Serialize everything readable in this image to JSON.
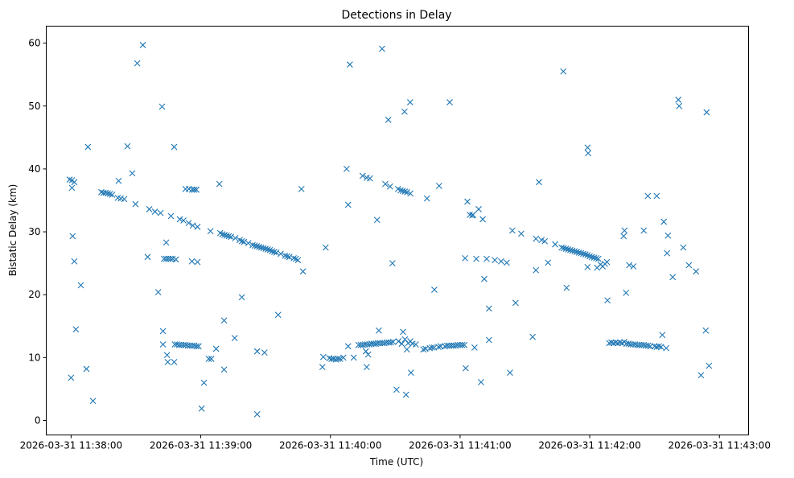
{
  "chart_data": {
    "type": "scatter",
    "title": "Detections in Delay",
    "xlabel": "Time (UTC)",
    "ylabel": "Bistatic Delay (km)",
    "x_units": "seconds after 2026-03-31 11:38:00 UTC",
    "xlim": [
      -11.5,
      313.5
    ],
    "ylim": [
      -2.3,
      62.7
    ],
    "grid": false,
    "marker": "x",
    "color": "#1f77b4",
    "x_ticks": [
      {
        "value": 0,
        "label": "2026-03-31 11:38:00"
      },
      {
        "value": 60,
        "label": "2026-03-31 11:39:00"
      },
      {
        "value": 120,
        "label": "2026-03-31 11:40:00"
      },
      {
        "value": 180,
        "label": "2026-03-31 11:41:00"
      },
      {
        "value": 240,
        "label": "2026-03-31 11:42:00"
      },
      {
        "value": 300,
        "label": "2026-03-31 11:43:00"
      }
    ],
    "y_ticks": [
      {
        "value": 0,
        "label": "0"
      },
      {
        "value": 10,
        "label": "10"
      },
      {
        "value": 20,
        "label": "20"
      },
      {
        "value": 30,
        "label": "30"
      },
      {
        "value": 40,
        "label": "40"
      },
      {
        "value": 50,
        "label": "50"
      },
      {
        "value": 60,
        "label": "60"
      }
    ],
    "points": [
      [
        -0.7,
        38.3
      ],
      [
        0.4,
        38.2
      ],
      [
        1.5,
        37.9
      ],
      [
        0.4,
        37.0
      ],
      [
        0.7,
        29.3
      ],
      [
        1.5,
        25.3
      ],
      [
        2.2,
        14.5
      ],
      [
        4.5,
        21.5
      ],
      [
        0,
        6.8
      ],
      [
        7.1,
        8.2
      ],
      [
        7.8,
        43.5
      ],
      [
        10.1,
        3.1
      ],
      [
        14,
        36.3
      ],
      [
        15,
        36.2
      ],
      [
        16,
        36.2
      ],
      [
        17,
        36.1
      ],
      [
        18,
        36.0
      ],
      [
        19,
        35.9
      ],
      [
        22.0,
        38.1
      ],
      [
        21.6,
        35.4
      ],
      [
        23,
        35.3
      ],
      [
        24.6,
        35.2
      ],
      [
        26.1,
        43.6
      ],
      [
        28.3,
        39.3
      ],
      [
        29.8,
        34.4
      ],
      [
        30.6,
        56.8
      ],
      [
        33.2,
        59.7
      ],
      [
        35.4,
        26.0
      ],
      [
        36.2,
        33.6
      ],
      [
        38.8,
        33.2
      ],
      [
        41.4,
        33.0
      ],
      [
        40.3,
        20.4
      ],
      [
        42.5,
        14.2
      ],
      [
        42.1,
        49.9
      ],
      [
        44.0,
        28.3
      ],
      [
        42.5,
        12.1
      ],
      [
        44.4,
        10.4
      ],
      [
        44.7,
        9.3
      ],
      [
        47.7,
        9.3
      ],
      [
        43,
        25.7
      ],
      [
        44,
        25.7
      ],
      [
        45,
        25.7
      ],
      [
        46,
        25.7
      ],
      [
        47,
        25.7
      ],
      [
        48.5,
        25.6
      ],
      [
        47.7,
        43.5
      ],
      [
        46.2,
        32.5
      ],
      [
        50.3,
        32.0
      ],
      [
        52,
        31.8
      ],
      [
        54.4,
        31.4
      ],
      [
        56.3,
        31.0
      ],
      [
        58.5,
        30.8
      ],
      [
        52.9,
        36.8
      ],
      [
        54.5,
        36.8
      ],
      [
        56,
        36.7
      ],
      [
        57,
        36.7
      ],
      [
        58,
        36.7
      ],
      [
        55.9,
        25.3
      ],
      [
        58.5,
        25.2
      ],
      [
        48,
        12.1
      ],
      [
        49,
        12.1
      ],
      [
        50,
        12.0
      ],
      [
        51,
        12.0
      ],
      [
        52,
        12.0
      ],
      [
        53,
        12.0
      ],
      [
        54,
        11.9
      ],
      [
        55,
        11.9
      ],
      [
        56,
        11.9
      ],
      [
        57,
        11.9
      ],
      [
        58,
        11.8
      ],
      [
        59,
        11.8
      ],
      [
        60.4,
        1.9
      ],
      [
        61.5,
        6.0
      ],
      [
        63.7,
        9.8
      ],
      [
        64.9,
        9.8
      ],
      [
        67.1,
        11.4
      ],
      [
        64.5,
        30.1
      ],
      [
        68.6,
        37.6
      ],
      [
        70.8,
        15.9
      ],
      [
        70.8,
        8.1
      ],
      [
        75.7,
        13.1
      ],
      [
        79.0,
        19.6
      ],
      [
        69,
        29.8
      ],
      [
        70,
        29.6
      ],
      [
        71,
        29.5
      ],
      [
        72,
        29.4
      ],
      [
        73,
        29.3
      ],
      [
        74,
        29.2
      ],
      [
        76,
        29.0
      ],
      [
        78,
        28.7
      ],
      [
        79,
        28.5
      ],
      [
        80,
        28.4
      ],
      [
        82,
        28.2
      ],
      [
        84,
        27.9
      ],
      [
        85,
        27.8
      ],
      [
        86,
        27.7
      ],
      [
        87,
        27.6
      ],
      [
        88,
        27.5
      ],
      [
        89,
        27.4
      ],
      [
        90,
        27.3
      ],
      [
        91,
        27.2
      ],
      [
        92,
        27.1
      ],
      [
        93,
        26.9
      ],
      [
        94,
        26.8
      ],
      [
        95,
        26.7
      ],
      [
        97,
        26.5
      ],
      [
        99,
        26.2
      ],
      [
        100,
        26.1
      ],
      [
        101,
        26.0
      ],
      [
        103,
        25.8
      ],
      [
        104,
        25.7
      ],
      [
        105,
        25.5
      ],
      [
        86.1,
        1.0
      ],
      [
        86.1,
        11.0
      ],
      [
        89.5,
        10.8
      ],
      [
        95.8,
        16.8
      ],
      [
        106.6,
        36.8
      ],
      [
        107.3,
        23.7
      ],
      [
        116.3,
        8.5
      ],
      [
        116.7,
        10.1
      ],
      [
        117.8,
        27.5
      ],
      [
        119.5,
        9.9
      ],
      [
        120.5,
        9.8
      ],
      [
        121.5,
        9.8
      ],
      [
        122.5,
        9.7
      ],
      [
        123.5,
        9.8
      ],
      [
        124.5,
        9.8
      ],
      [
        126.0,
        10.0
      ],
      [
        128.2,
        11.8
      ],
      [
        127.5,
        40.0
      ],
      [
        128.2,
        34.3
      ],
      [
        129.0,
        56.6
      ],
      [
        130.8,
        10.0
      ],
      [
        136.4,
        11.0
      ],
      [
        136.8,
        8.5
      ],
      [
        137.5,
        10.5
      ],
      [
        133,
        12.0
      ],
      [
        134,
        12.0
      ],
      [
        135,
        12.0
      ],
      [
        136,
        12.1
      ],
      [
        137,
        12.1
      ],
      [
        138,
        12.1
      ],
      [
        139,
        12.2
      ],
      [
        140,
        12.2
      ],
      [
        141,
        12.2
      ],
      [
        142,
        12.3
      ],
      [
        143,
        12.3
      ],
      [
        144,
        12.3
      ],
      [
        145,
        12.3
      ],
      [
        146,
        12.4
      ],
      [
        147,
        12.4
      ],
      [
        148,
        12.4
      ],
      [
        149,
        12.5
      ],
      [
        134.9,
        38.9
      ],
      [
        136.8,
        38.6
      ],
      [
        138.3,
        38.5
      ],
      [
        141.6,
        31.9
      ],
      [
        142.4,
        14.3
      ],
      [
        143.9,
        59.1
      ],
      [
        145.4,
        37.6
      ],
      [
        146.8,
        47.8
      ],
      [
        147.6,
        37.2
      ],
      [
        148.7,
        25.0
      ],
      [
        150.6,
        4.9
      ],
      [
        151.3,
        36.8
      ],
      [
        152.5,
        36.6
      ],
      [
        153.5,
        36.5
      ],
      [
        154.5,
        36.4
      ],
      [
        155.5,
        36.3
      ],
      [
        157,
        36.1
      ],
      [
        153.6,
        14.1
      ],
      [
        154.3,
        49.1
      ],
      [
        155.0,
        4.1
      ],
      [
        156.9,
        50.6
      ],
      [
        157.3,
        7.6
      ],
      [
        155.4,
        11.3
      ],
      [
        151.5,
        12.6
      ],
      [
        153,
        12.2
      ],
      [
        154.5,
        12.9
      ],
      [
        156,
        12.3
      ],
      [
        157,
        12.6
      ],
      [
        158,
        12.2
      ],
      [
        159.5,
        12.1
      ],
      [
        163,
        11.3
      ],
      [
        164,
        11.4
      ],
      [
        166,
        11.5
      ],
      [
        167,
        11.6
      ],
      [
        168,
        11.6
      ],
      [
        170,
        11.7
      ],
      [
        171,
        11.8
      ],
      [
        164.7,
        35.3
      ],
      [
        168.1,
        20.8
      ],
      [
        170.3,
        37.3
      ],
      [
        175.2,
        50.6
      ],
      [
        173,
        11.8
      ],
      [
        174,
        11.9
      ],
      [
        175,
        11.9
      ],
      [
        176,
        11.9
      ],
      [
        177,
        11.9
      ],
      [
        178,
        11.9
      ],
      [
        179,
        12.0
      ],
      [
        180,
        12.0
      ],
      [
        181,
        12.0
      ],
      [
        182,
        12.0
      ],
      [
        182.3,
        25.8
      ],
      [
        182.6,
        8.3
      ],
      [
        183.4,
        34.8
      ],
      [
        184.5,
        32.7
      ],
      [
        185.6,
        32.6
      ],
      [
        186.0,
        32.7
      ],
      [
        186.7,
        11.6
      ],
      [
        187.5,
        25.7
      ],
      [
        188.6,
        33.6
      ],
      [
        189.7,
        6.1
      ],
      [
        190.5,
        32.0
      ],
      [
        191.2,
        22.5
      ],
      [
        192.3,
        25.7
      ],
      [
        193.4,
        17.8
      ],
      [
        193.4,
        12.8
      ],
      [
        196.1,
        25.5
      ],
      [
        199.0,
        25.3
      ],
      [
        201.6,
        25.1
      ],
      [
        203.1,
        7.6
      ],
      [
        204.2,
        30.2
      ],
      [
        205.7,
        18.7
      ],
      [
        208.3,
        29.7
      ],
      [
        213.6,
        13.3
      ],
      [
        215.1,
        23.9
      ],
      [
        215.1,
        28.9
      ],
      [
        216.5,
        37.9
      ],
      [
        217.7,
        28.7
      ],
      [
        219.2,
        28.5
      ],
      [
        220.7,
        25.1
      ],
      [
        224.0,
        28.0
      ],
      [
        227.8,
        55.5
      ],
      [
        229.3,
        21.1
      ],
      [
        227,
        27.5
      ],
      [
        228,
        27.4
      ],
      [
        229,
        27.3
      ],
      [
        230,
        27.2
      ],
      [
        231,
        27.1
      ],
      [
        232,
        27.0
      ],
      [
        233,
        26.9
      ],
      [
        234,
        26.8
      ],
      [
        235,
        26.7
      ],
      [
        236,
        26.6
      ],
      [
        237,
        26.5
      ],
      [
        238,
        26.4
      ],
      [
        239,
        26.3
      ],
      [
        240,
        26.1
      ],
      [
        241,
        26.0
      ],
      [
        242,
        25.9
      ],
      [
        243,
        25.8
      ],
      [
        244,
        25.7
      ],
      [
        239.0,
        43.4
      ],
      [
        239.3,
        42.5
      ],
      [
        239,
        24.4
      ],
      [
        243.4,
        24.3
      ],
      [
        245,
        24.8
      ],
      [
        246,
        24.5
      ],
      [
        247,
        24.9
      ],
      [
        248,
        25.2
      ],
      [
        248.2,
        19.1
      ],
      [
        249,
        12.3
      ],
      [
        250,
        12.4
      ],
      [
        251,
        12.3
      ],
      [
        252,
        12.4
      ],
      [
        253,
        12.3
      ],
      [
        254,
        12.4
      ],
      [
        255,
        12.3
      ],
      [
        256,
        12.5
      ],
      [
        257,
        12.2
      ],
      [
        258,
        12.2
      ],
      [
        259,
        12.1
      ],
      [
        260,
        12.1
      ],
      [
        261,
        12.1
      ],
      [
        262,
        12.0
      ],
      [
        263,
        12.0
      ],
      [
        264,
        12.0
      ],
      [
        265,
        12.0
      ],
      [
        266,
        11.9
      ],
      [
        267,
        11.9
      ],
      [
        268,
        11.8
      ],
      [
        270,
        11.8
      ],
      [
        271,
        11.7
      ],
      [
        272,
        11.8
      ],
      [
        273,
        11.7
      ],
      [
        255.7,
        29.3
      ],
      [
        256.1,
        30.2
      ],
      [
        256.8,
        20.3
      ],
      [
        258.3,
        24.7
      ],
      [
        260.2,
        24.5
      ],
      [
        265.0,
        30.2
      ],
      [
        266.9,
        35.7
      ],
      [
        271.0,
        35.7
      ],
      [
        273.6,
        13.6
      ],
      [
        274.3,
        31.6
      ],
      [
        275.4,
        11.5
      ],
      [
        275.8,
        26.6
      ],
      [
        276.2,
        29.4
      ],
      [
        278.4,
        22.8
      ],
      [
        281.0,
        51.0
      ],
      [
        281.4,
        50.0
      ],
      [
        283.3,
        27.5
      ],
      [
        285.9,
        24.7
      ],
      [
        289.2,
        23.7
      ],
      [
        291.5,
        7.2
      ],
      [
        293.7,
        14.3
      ],
      [
        294.1,
        49.0
      ],
      [
        295.2,
        8.7
      ]
    ]
  }
}
